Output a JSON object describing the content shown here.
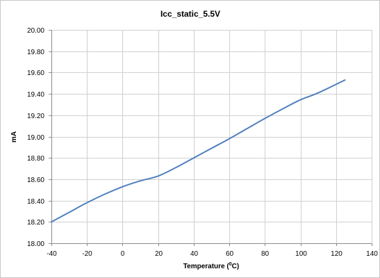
{
  "chart_data": {
    "type": "line",
    "title": "Icc_static_5.5V",
    "xlabel_main": "Temperature (",
    "xlabel_sup": "0",
    "xlabel_end": "C)",
    "ylabel": "mA",
    "xlim": [
      -40,
      140
    ],
    "ylim": [
      18.0,
      20.0
    ],
    "xticks": [
      -40,
      -20,
      0,
      20,
      40,
      60,
      80,
      100,
      120,
      140
    ],
    "xtick_labels": [
      "-40",
      "-20",
      "0",
      "20",
      "40",
      "60",
      "80",
      "100",
      "120",
      "140"
    ],
    "yticks": [
      18.0,
      18.2,
      18.4,
      18.6,
      18.8,
      19.0,
      19.2,
      19.4,
      19.6,
      19.8,
      20.0
    ],
    "ytick_labels": [
      "18.00",
      "18.20",
      "18.40",
      "18.60",
      "18.80",
      "19.00",
      "19.20",
      "19.40",
      "19.60",
      "19.80",
      "20.00"
    ],
    "grid": true,
    "legend": "none",
    "series": [
      {
        "color": "#4f7fbf",
        "x": [
          -40,
          -30,
          -20,
          -10,
          0,
          10,
          20,
          30,
          40,
          50,
          60,
          70,
          80,
          90,
          100,
          110,
          125
        ],
        "y": [
          18.2,
          18.29,
          18.38,
          18.46,
          18.53,
          18.585,
          18.63,
          18.71,
          18.8,
          18.89,
          18.98,
          19.075,
          19.17,
          19.26,
          19.345,
          19.41,
          19.53
        ]
      }
    ]
  }
}
